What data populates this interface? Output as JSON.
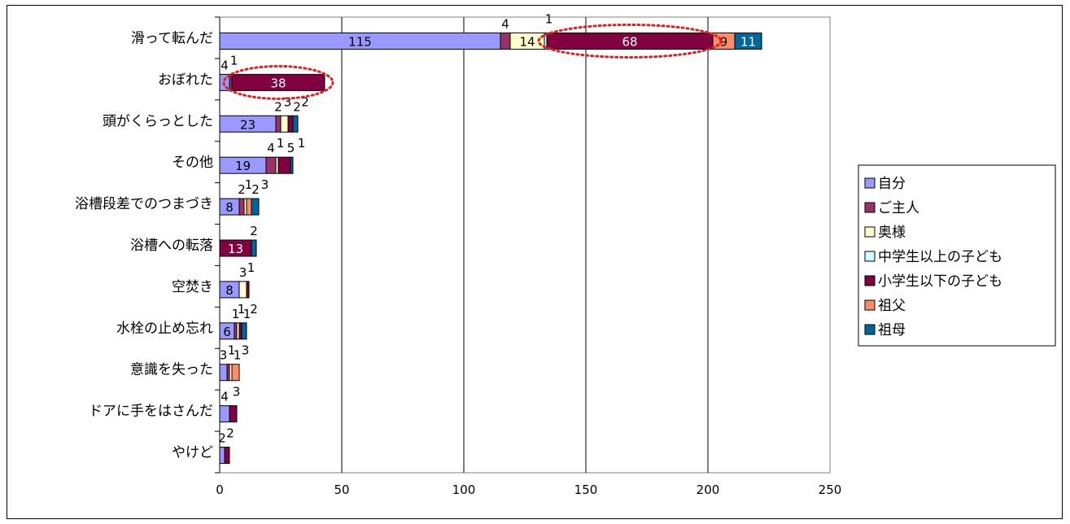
{
  "chart_data": {
    "type": "bar",
    "orientation": "horizontal",
    "stacked": true,
    "categories": [
      "滑って転んだ",
      "おぼれた",
      "頭がくらっとした",
      "その他",
      "浴槽段差でのつまづき",
      "浴槽への転落",
      "空焚き",
      "水栓の止め忘れ",
      "意識を失った",
      "ドアに手をはさんだ",
      "やけど"
    ],
    "series": [
      {
        "name": "自分",
        "color": "#9999ff",
        "values": [
          115,
          4,
          23,
          19,
          8,
          0,
          8,
          6,
          3,
          4,
          2
        ]
      },
      {
        "name": "ご主人",
        "color": "#993366",
        "values": [
          4,
          1,
          2,
          4,
          2,
          0,
          0,
          1,
          1,
          0,
          0
        ]
      },
      {
        "name": "奥様",
        "color": "#ffffcc",
        "values": [
          14,
          0,
          3,
          1,
          1,
          0,
          3,
          1,
          1,
          0,
          0
        ]
      },
      {
        "name": "中学生以上の子ども",
        "color": "#ccffff",
        "values": [
          1,
          0,
          0,
          0,
          0,
          0,
          0,
          0,
          0,
          0,
          0
        ]
      },
      {
        "name": "小学生以下の子ども",
        "color": "#800040",
        "values": [
          68,
          38,
          2,
          5,
          0,
          13,
          1,
          1,
          0,
          3,
          2
        ]
      },
      {
        "name": "祖父",
        "color": "#ff8c69",
        "values": [
          9,
          0,
          0,
          0,
          2,
          0,
          0,
          0,
          3,
          0,
          0
        ]
      },
      {
        "name": "祖母",
        "color": "#006699",
        "values": [
          11,
          0,
          2,
          1,
          3,
          2,
          0,
          2,
          0,
          0,
          0
        ]
      }
    ],
    "xlim": [
      0,
      250
    ],
    "xticks": [
      0,
      50,
      100,
      150,
      200,
      250
    ],
    "grid": "vertical",
    "legend_position": "right",
    "title": "",
    "xlabel": "",
    "ylabel": "",
    "highlight_rings": [
      {
        "category": "滑って転んだ",
        "series": "小学生以下の子ども"
      },
      {
        "category": "おぼれた",
        "series": "小学生以下の子ども"
      }
    ]
  }
}
